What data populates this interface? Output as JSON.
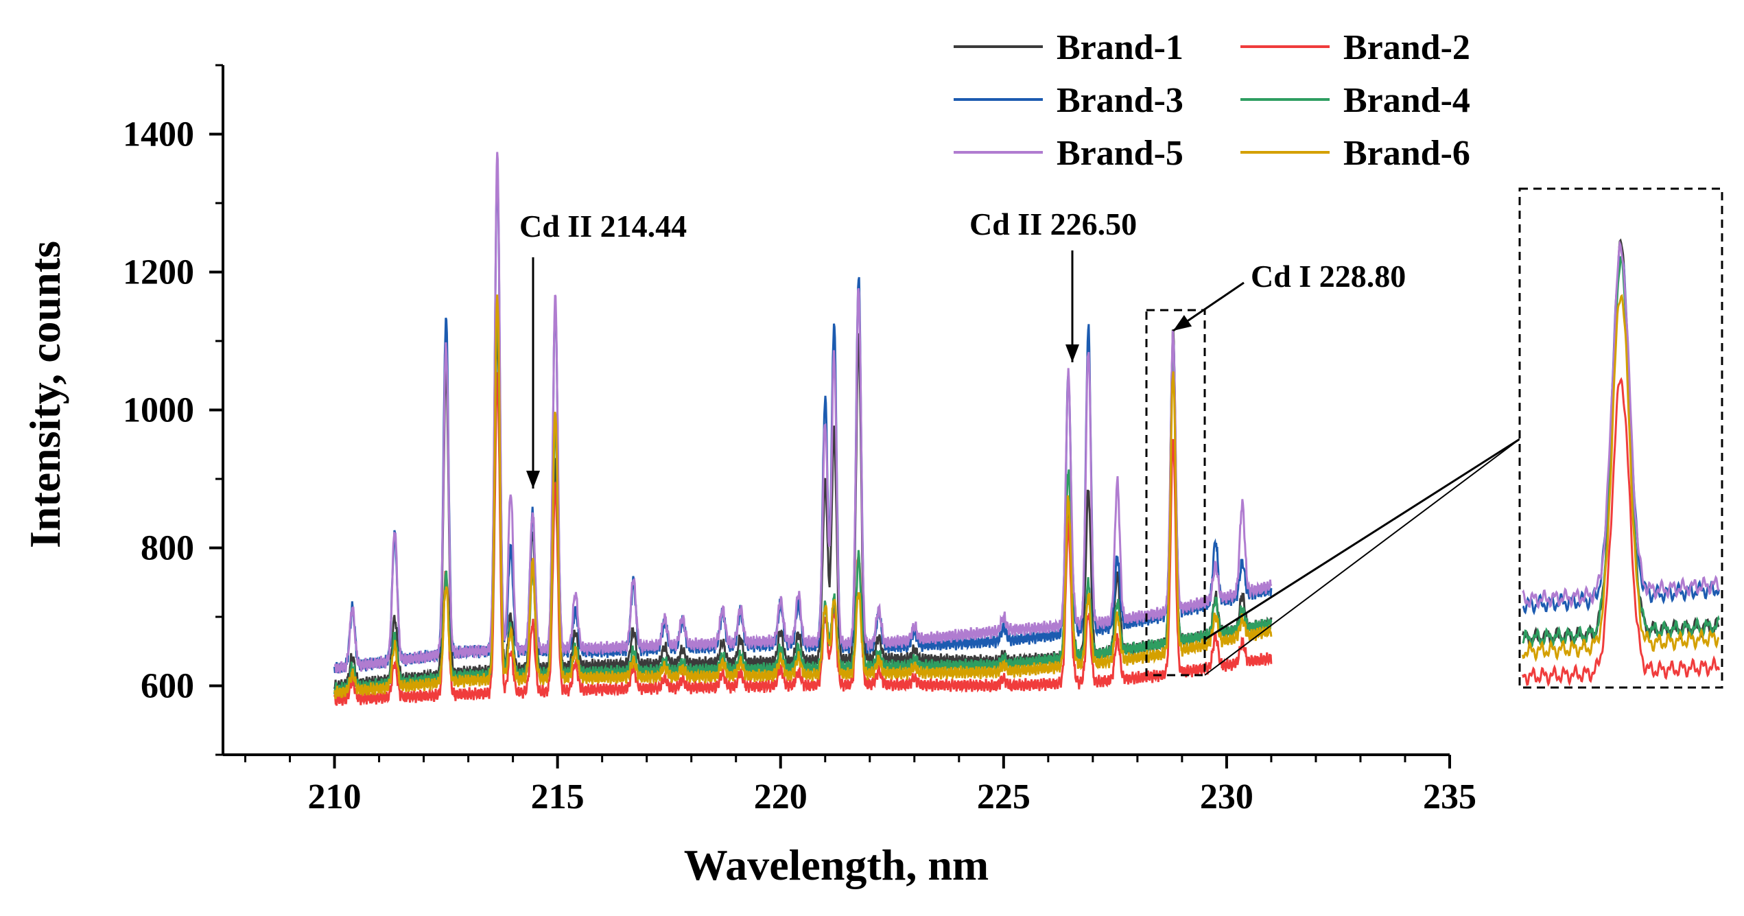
{
  "chart_data": {
    "type": "line",
    "title": "",
    "xlabel": "Wavelength, nm",
    "ylabel": "Intensity, counts",
    "xlim": [
      207.5,
      235
    ],
    "ylim": [
      500,
      1500
    ],
    "xticks": [
      210,
      215,
      220,
      225,
      230,
      235
    ],
    "yticks": [
      600,
      800,
      1000,
      1200,
      1400
    ],
    "legend_position": "top-right",
    "peaks_x": [
      210.4,
      211.35,
      212.5,
      213.65,
      213.95,
      214.44,
      214.95,
      215.4,
      216.7,
      217.4,
      217.8,
      218.7,
      219.1,
      220.0,
      220.4,
      221.0,
      221.2,
      221.75,
      222.2,
      223.0,
      225.0,
      226.45,
      226.55,
      226.9,
      227.55,
      228.8,
      229.75,
      230.35
    ],
    "series": [
      {
        "name": "Brand-1",
        "color": "#3b3b3b",
        "baseline": [
          [
            210,
            600
          ],
          [
            213,
            620
          ],
          [
            216,
            630
          ],
          [
            220,
            635
          ],
          [
            222,
            640
          ],
          [
            225,
            635
          ],
          [
            227,
            645
          ],
          [
            228.5,
            660
          ],
          [
            231,
            690
          ]
        ],
        "peaks": [
          40,
          90,
          450,
          500,
          80,
          200,
          300,
          50,
          50,
          25,
          20,
          30,
          35,
          45,
          40,
          260,
          330,
          470,
          30,
          15,
          10,
          210,
          20,
          240,
          110,
          450,
          55,
          50
        ]
      },
      {
        "name": "Brand-2",
        "color": "#f03c3c",
        "baseline": [
          [
            210,
            580
          ],
          [
            213,
            588
          ],
          [
            216,
            595
          ],
          [
            220,
            600
          ],
          [
            222,
            602
          ],
          [
            225,
            600
          ],
          [
            227,
            605
          ],
          [
            228.5,
            615
          ],
          [
            231,
            640
          ]
        ],
        "peaks": [
          25,
          50,
          180,
          460,
          60,
          100,
          300,
          40,
          30,
          15,
          12,
          20,
          20,
          25,
          20,
          100,
          110,
          190,
          20,
          10,
          10,
          230,
          15,
          100,
          60,
          340,
          45,
          30
        ]
      },
      {
        "name": "Brand-3",
        "color": "#1c5bb0",
        "baseline": [
          [
            210,
            625
          ],
          [
            213,
            650
          ],
          [
            216,
            650
          ],
          [
            220,
            660
          ],
          [
            222,
            655
          ],
          [
            225,
            665
          ],
          [
            227,
            680
          ],
          [
            228.5,
            700
          ],
          [
            231,
            740
          ]
        ],
        "peaks": [
          85,
          185,
          490,
          700,
          150,
          200,
          500,
          60,
          100,
          40,
          40,
          50,
          50,
          60,
          60,
          360,
          470,
          540,
          50,
          20,
          20,
          370,
          25,
          440,
          100,
          400,
          90,
          50
        ]
      },
      {
        "name": "Brand-4",
        "color": "#2e9e61",
        "baseline": [
          [
            210,
            595
          ],
          [
            213,
            615
          ],
          [
            216,
            620
          ],
          [
            220,
            625
          ],
          [
            222,
            628
          ],
          [
            225,
            630
          ],
          [
            227,
            645
          ],
          [
            228.5,
            660
          ],
          [
            231,
            690
          ]
        ],
        "peaks": [
          30,
          70,
          150,
          530,
          70,
          150,
          360,
          40,
          30,
          15,
          12,
          20,
          20,
          30,
          30,
          90,
          100,
          160,
          20,
          10,
          10,
          270,
          20,
          105,
          70,
          430,
          50,
          30
        ]
      },
      {
        "name": "Brand-5",
        "color": "#b07cd0",
        "baseline": [
          [
            210,
            625
          ],
          [
            213,
            650
          ],
          [
            216,
            655
          ],
          [
            220,
            665
          ],
          [
            222,
            660
          ],
          [
            225,
            680
          ],
          [
            227,
            690
          ],
          [
            228.5,
            705
          ],
          [
            231,
            745
          ]
        ],
        "peaks": [
          85,
          190,
          450,
          720,
          230,
          200,
          510,
          80,
          100,
          40,
          40,
          50,
          50,
          60,
          70,
          320,
          420,
          520,
          50,
          20,
          20,
          360,
          25,
          400,
          200,
          400,
          50,
          130
        ]
      },
      {
        "name": "Brand-6",
        "color": "#d4a000",
        "baseline": [
          [
            210,
            590
          ],
          [
            213,
            608
          ],
          [
            216,
            612
          ],
          [
            220,
            615
          ],
          [
            222,
            618
          ],
          [
            225,
            620
          ],
          [
            227,
            632
          ],
          [
            228.5,
            645
          ],
          [
            231,
            680
          ]
        ],
        "peaks": [
          25,
          60,
          140,
          560,
          70,
          170,
          390,
          40,
          25,
          15,
          12,
          20,
          20,
          25,
          25,
          100,
          110,
          120,
          20,
          10,
          10,
          240,
          20,
          100,
          65,
          410,
          40,
          25
        ]
      }
    ],
    "annotations": [
      {
        "text": "Cd II 214.44",
        "x": 214.44,
        "y": 890
      },
      {
        "text": "Cd II 226.50",
        "x": 226.5,
        "y": 1070
      },
      {
        "text": "Cd I 228.80",
        "x": 228.8,
        "y": 1120
      }
    ],
    "inset": {
      "xlim": [
        228.15,
        229.45
      ],
      "ylim": [
        600,
        1180
      ],
      "note": "zoom of Cd I 228.80 region"
    }
  }
}
